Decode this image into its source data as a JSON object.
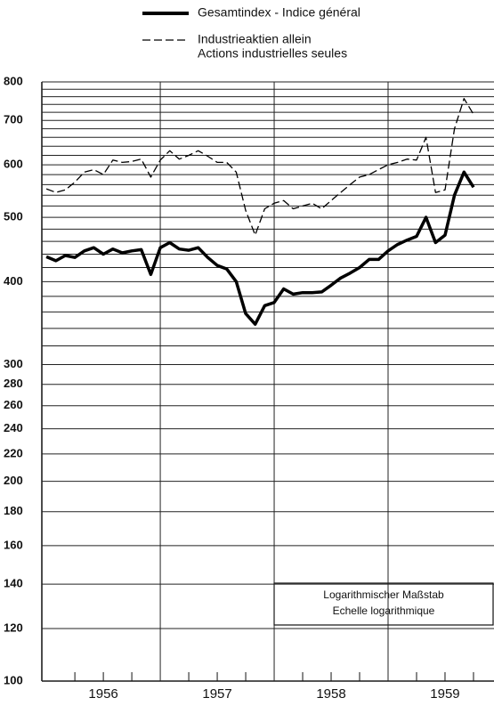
{
  "chart_data": {
    "type": "line",
    "log_scale_y": true,
    "grid": true,
    "x": [
      1956,
      1956.0833,
      1956.1667,
      1956.25,
      1956.3333,
      1956.4167,
      1956.5,
      1956.5833,
      1956.6667,
      1956.75,
      1956.8333,
      1956.9167,
      1957,
      1957.0833,
      1957.1667,
      1957.25,
      1957.3333,
      1957.4167,
      1957.5,
      1957.5833,
      1957.6667,
      1957.75,
      1957.8333,
      1957.9167,
      1958,
      1958.0833,
      1958.1667,
      1958.25,
      1958.3333,
      1958.4167,
      1958.5,
      1958.5833,
      1958.6667,
      1958.75,
      1958.8333,
      1958.9167,
      1959,
      1959.0833,
      1959.1667,
      1959.25,
      1959.3333,
      1959.4167,
      1959.5,
      1959.5833,
      1959.6667,
      1959.75
    ],
    "series": [
      {
        "name": "Gesamtindex - Indice général",
        "color": "#000000",
        "style": "solid",
        "values": [
          436,
          430,
          438,
          435,
          445,
          450,
          440,
          448,
          442,
          445,
          447,
          410,
          450,
          458,
          448,
          446,
          450,
          435,
          423,
          418,
          400,
          358,
          345,
          368,
          372,
          390,
          383,
          385,
          385,
          386,
          395,
          405,
          412,
          420,
          432,
          432,
          445,
          455,
          462,
          468,
          500,
          458,
          470,
          540,
          585,
          555
        ]
      },
      {
        "name": [
          "Industrieaktien allein",
          "Actions industrielles seules"
        ],
        "color": "#000000",
        "style": "dashed",
        "values": [
          552,
          545,
          550,
          565,
          585,
          590,
          580,
          610,
          605,
          607,
          612,
          575,
          610,
          630,
          612,
          620,
          630,
          618,
          605,
          605,
          585,
          512,
          470,
          515,
          525,
          530,
          515,
          520,
          525,
          515,
          530,
          545,
          560,
          575,
          580,
          590,
          600,
          605,
          612,
          610,
          660,
          545,
          550,
          680,
          755,
          715
        ]
      }
    ],
    "xlim": [
      1955.96,
      1959.93
    ],
    "xticks": [
      {
        "value": 1956.5,
        "label": "1956"
      },
      {
        "value": 1957.5,
        "label": "1957"
      },
      {
        "value": 1958.5,
        "label": "1958"
      },
      {
        "value": 1959.5,
        "label": "1959"
      }
    ],
    "xgrid": [
      1957,
      1958,
      1959
    ],
    "minor_xticks": [
      1956.25,
      1956.5,
      1956.75,
      1957.25,
      1957.5,
      1957.75,
      1958.25,
      1958.5,
      1958.75,
      1959.25,
      1959.5,
      1959.75
    ],
    "ylim": [
      100,
      800
    ],
    "yticks": [
      100,
      120,
      140,
      160,
      180,
      200,
      220,
      240,
      260,
      280,
      300,
      400,
      500,
      600,
      700,
      800
    ],
    "minor_yticks": [
      320,
      340,
      360,
      380,
      420,
      440,
      460,
      480,
      520,
      540,
      560,
      580,
      620,
      640,
      660,
      680,
      720,
      740,
      760,
      780
    ],
    "annotation": [
      "Logarithmischer Maßstab",
      "Echelle logarithmique"
    ]
  }
}
